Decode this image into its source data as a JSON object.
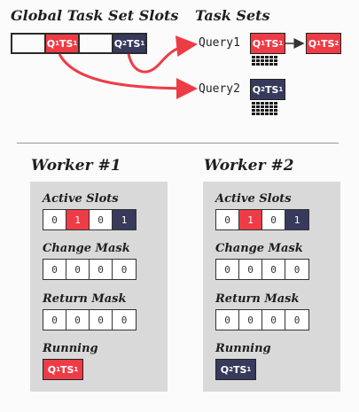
{
  "header": {
    "global_title": "Global Task Set Slots",
    "tasksets_title": "Task Sets"
  },
  "global_slots": [
    {
      "q": "",
      "ts": "",
      "color": "white"
    },
    {
      "q": "1",
      "ts": "1",
      "color": "red"
    },
    {
      "q": "",
      "ts": "",
      "color": "white"
    },
    {
      "q": "2",
      "ts": "1",
      "color": "navy"
    }
  ],
  "queries": [
    {
      "label": "Query1",
      "tasksets": [
        {
          "q": "1",
          "ts": "1"
        },
        {
          "q": "1",
          "ts": "2"
        }
      ]
    },
    {
      "label": "Query2",
      "tasksets": [
        {
          "q": "2",
          "ts": "1"
        }
      ]
    }
  ],
  "workers": [
    {
      "title": "Worker #1",
      "active_label": "Active Slots",
      "active_slots": [
        "0",
        "1",
        "0",
        "1"
      ],
      "change_label": "Change Mask",
      "change_mask": [
        "0",
        "0",
        "0",
        "0"
      ],
      "return_label": "Return Mask",
      "return_mask": [
        "0",
        "0",
        "0",
        "0"
      ],
      "running_label": "Running",
      "running": {
        "q": "1",
        "ts": "1"
      }
    },
    {
      "title": "Worker #2",
      "active_label": "Active Slots",
      "active_slots": [
        "0",
        "1",
        "0",
        "1"
      ],
      "change_label": "Change Mask",
      "change_mask": [
        "0",
        "0",
        "0",
        "0"
      ],
      "return_label": "Return Mask",
      "return_mask": [
        "0",
        "0",
        "0",
        "0"
      ],
      "running_label": "Running",
      "running": {
        "q": "2",
        "ts": "1"
      }
    }
  ],
  "colors": {
    "red": "#ee3c46",
    "navy": "#383a5c",
    "panel": "#d9d9d9"
  }
}
